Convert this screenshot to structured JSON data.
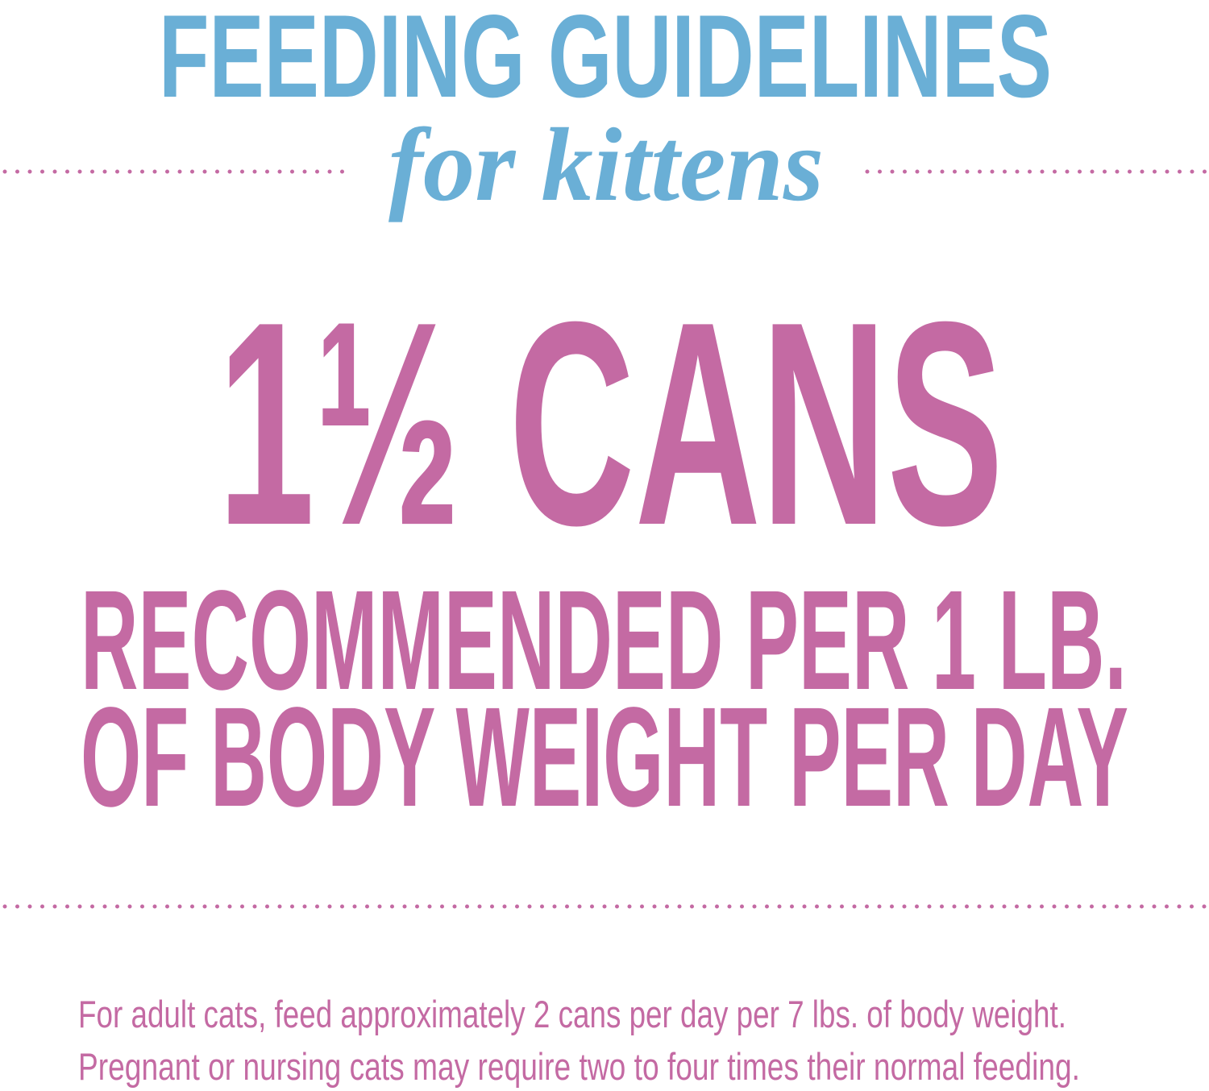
{
  "header": {
    "title": "FEEDING GUIDELINES",
    "subtitle": "for kittens"
  },
  "main": {
    "amount": "1½ CANS",
    "lines": [
      "RECOMMENDED PER 1 LB.",
      "OF BODY WEIGHT PER DAY"
    ]
  },
  "footnote": [
    "For adult cats, feed approximately 2 cans per day per 7 lbs. of body weight.",
    "Pregnant or nursing cats may require two to four times their normal feeding."
  ]
}
